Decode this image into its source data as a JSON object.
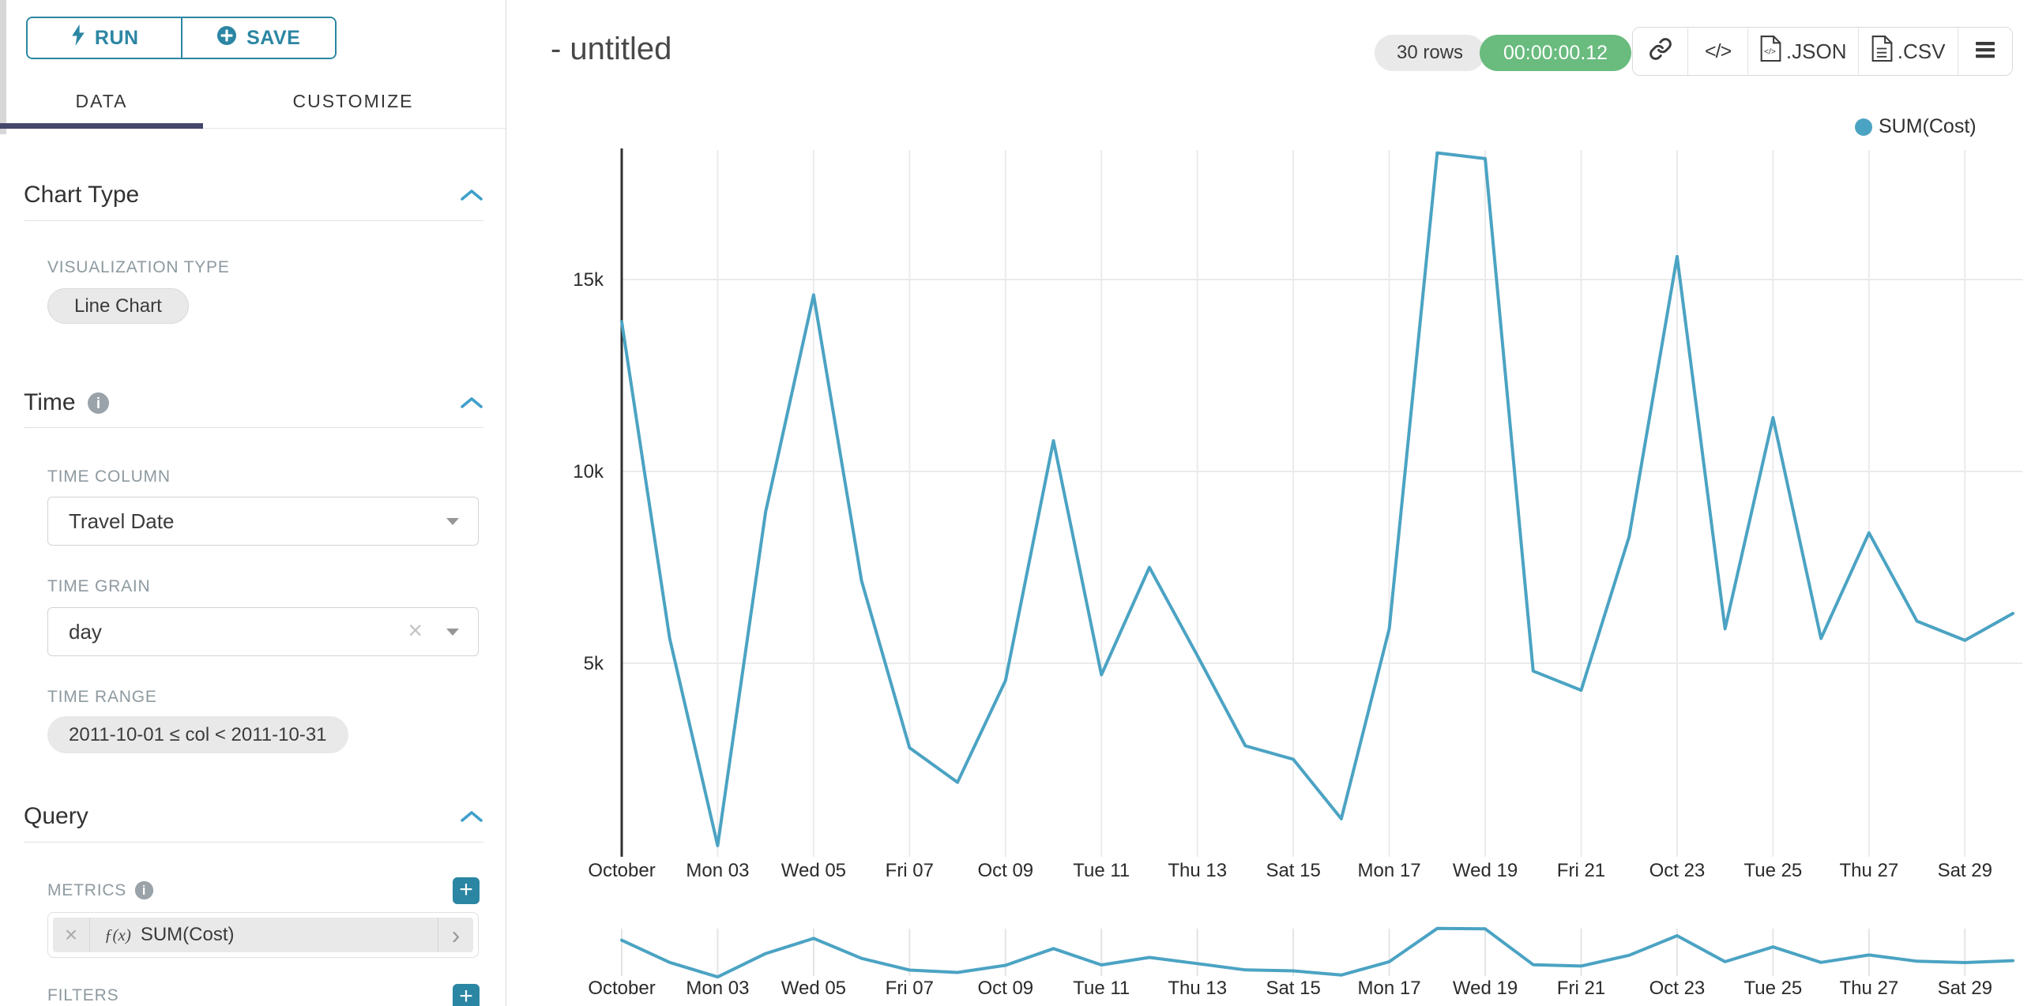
{
  "sidebar": {
    "run_label": "RUN",
    "save_label": "SAVE",
    "tabs": {
      "data": "DATA",
      "customize": "CUSTOMIZE"
    },
    "chart_type": {
      "title": "Chart Type",
      "viz_label": "VISUALIZATION TYPE",
      "viz_value": "Line Chart"
    },
    "time": {
      "title": "Time",
      "column_label": "TIME COLUMN",
      "column_value": "Travel Date",
      "grain_label": "TIME GRAIN",
      "grain_value": "day",
      "range_label": "TIME RANGE",
      "range_value": "2011-10-01 ≤ col < 2011-10-31"
    },
    "query": {
      "title": "Query",
      "metrics_label": "METRICS",
      "metric_fx": "ƒ(x)",
      "metric_name": "SUM(Cost)",
      "filters_label": "FILTERS"
    }
  },
  "header": {
    "title": "- untitled",
    "rows_badge": "30 rows",
    "duration_badge": "00:00:00.12",
    "json_label": ".JSON",
    "csv_label": ".CSV"
  },
  "legend": {
    "label": "SUM(Cost)"
  },
  "colors": {
    "accent": "#2b86a3",
    "chevron": "#3f9fca",
    "line": "#4ba3c3",
    "green": "#69bb7e",
    "tab_underline": "#45486b"
  },
  "chart_data": {
    "type": "line",
    "title": "- untitled",
    "x": [
      "2011-10-01",
      "2011-10-02",
      "2011-10-03",
      "2011-10-04",
      "2011-10-05",
      "2011-10-06",
      "2011-10-07",
      "2011-10-08",
      "2011-10-09",
      "2011-10-10",
      "2011-10-11",
      "2011-10-12",
      "2011-10-13",
      "2011-10-14",
      "2011-10-15",
      "2011-10-16",
      "2011-10-17",
      "2011-10-18",
      "2011-10-19",
      "2011-10-20",
      "2011-10-21",
      "2011-10-22",
      "2011-10-23",
      "2011-10-24",
      "2011-10-25",
      "2011-10-26",
      "2011-10-27",
      "2011-10-28",
      "2011-10-29",
      "2011-10-30"
    ],
    "series": [
      {
        "name": "SUM(Cost)",
        "color": "#4ba3c3",
        "values": [
          13900,
          5650,
          250,
          8950,
          14600,
          7150,
          2800,
          1900,
          4550,
          10800,
          4700,
          7500,
          5200,
          2850,
          2500,
          950,
          5900,
          18300,
          18150,
          4800,
          4300,
          8300,
          15600,
          5900,
          11400,
          5650,
          8400,
          6100,
          5600,
          6300
        ]
      }
    ],
    "x_tick_labels": [
      "October",
      "Mon 03",
      "Wed 05",
      "Fri 07",
      "Oct 09",
      "Tue 11",
      "Thu 13",
      "Sat 15",
      "Mon 17",
      "Wed 19",
      "Fri 21",
      "Oct 23",
      "Tue 25",
      "Thu 27",
      "Sat 29"
    ],
    "x_tick_indices": [
      0,
      2,
      4,
      6,
      8,
      10,
      12,
      14,
      16,
      18,
      20,
      22,
      24,
      26,
      28
    ],
    "y_ticks": [
      {
        "label": "5k",
        "value": 5000
      },
      {
        "label": "10k",
        "value": 10000
      },
      {
        "label": "15k",
        "value": 15000
      }
    ],
    "ylim": [
      -40,
      18375
    ],
    "grid": true,
    "legend_position": "top-right",
    "has_range_selector": true
  }
}
